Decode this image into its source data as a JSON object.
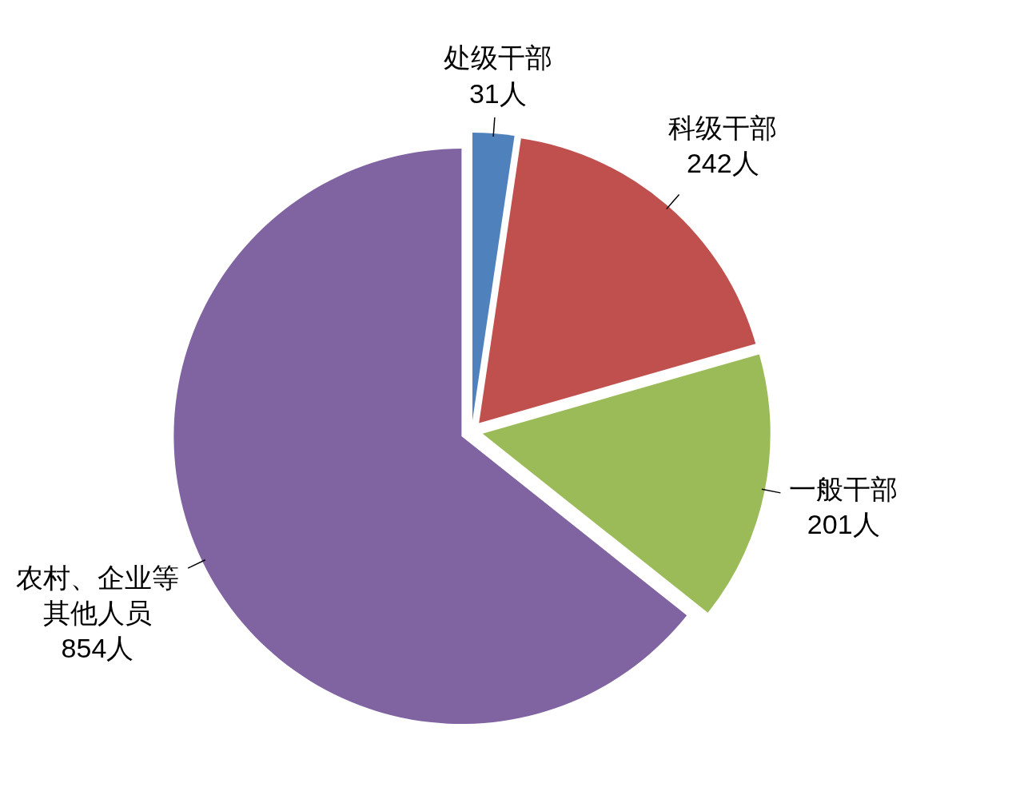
{
  "chart_data": {
    "type": "pie",
    "categories": [
      "处级干部",
      "科级干部",
      "一般干部",
      "农村、企业等其他人员"
    ],
    "values": [
      31,
      242,
      201,
      854
    ],
    "colors": [
      "#4f81bd",
      "#c0504d",
      "#9bbb59",
      "#8064a2"
    ],
    "value_labels": [
      "31人",
      "242人",
      "201人",
      "854人"
    ]
  }
}
